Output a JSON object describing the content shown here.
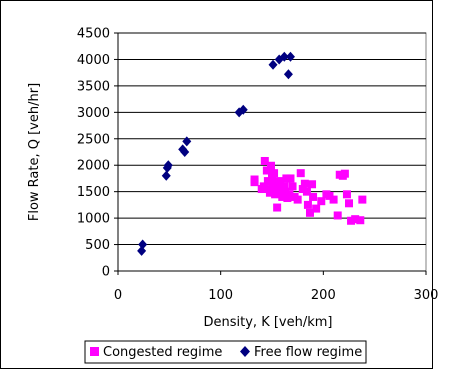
{
  "chart_data": {
    "type": "scatter",
    "title": "",
    "xlabel": "Density, K [veh/km]",
    "ylabel": "Flow Rate, Q [veh/hr]",
    "xlim": [
      0,
      300
    ],
    "ylim": [
      0,
      4500
    ],
    "x_ticks": [
      0,
      100,
      200,
      300
    ],
    "y_ticks": [
      0,
      500,
      1000,
      1500,
      2000,
      2500,
      3000,
      3500,
      4000,
      4500
    ],
    "x_tick_labels": [
      "0",
      "100",
      "200",
      "300"
    ],
    "y_tick_labels": [
      "0",
      "500",
      "1000",
      "1500",
      "2000",
      "2500",
      "3000",
      "3500",
      "4000",
      "4500"
    ],
    "grid": "horizontal",
    "legend_position": "bottom",
    "series": [
      {
        "name": "Congested regime",
        "marker": "square",
        "color": "#ff00ff",
        "points": [
          [
            133,
            1730
          ],
          [
            133,
            1680
          ],
          [
            140,
            1550
          ],
          [
            142,
            1600
          ],
          [
            143,
            2080
          ],
          [
            145,
            1900
          ],
          [
            146,
            1700
          ],
          [
            147,
            1550
          ],
          [
            148,
            1480
          ],
          [
            149,
            1990
          ],
          [
            150,
            1750
          ],
          [
            151,
            1620
          ],
          [
            152,
            1850
          ],
          [
            153,
            1450
          ],
          [
            154,
            1560
          ],
          [
            155,
            1200
          ],
          [
            156,
            1520
          ],
          [
            157,
            1700
          ],
          [
            158,
            1650
          ],
          [
            159,
            1500
          ],
          [
            160,
            1400
          ],
          [
            162,
            1600
          ],
          [
            163,
            1500
          ],
          [
            164,
            1750
          ],
          [
            165,
            1380
          ],
          [
            167,
            1450
          ],
          [
            168,
            1750
          ],
          [
            170,
            1600
          ],
          [
            172,
            1400
          ],
          [
            175,
            1350
          ],
          [
            178,
            1850
          ],
          [
            180,
            1550
          ],
          [
            182,
            1650
          ],
          [
            184,
            1500
          ],
          [
            185,
            1250
          ],
          [
            187,
            1100
          ],
          [
            189,
            1640
          ],
          [
            190,
            1400
          ],
          [
            193,
            1180
          ],
          [
            198,
            1320
          ],
          [
            203,
            1450
          ],
          [
            206,
            1420
          ],
          [
            210,
            1350
          ],
          [
            214,
            1050
          ],
          [
            216,
            1820
          ],
          [
            219,
            1800
          ],
          [
            221,
            1840
          ],
          [
            223,
            1450
          ],
          [
            225,
            1280
          ],
          [
            227,
            950
          ],
          [
            231,
            980
          ],
          [
            236,
            960
          ],
          [
            238,
            1350
          ]
        ]
      },
      {
        "name": "Free flow regime",
        "marker": "diamond",
        "color": "#000080",
        "points": [
          [
            23,
            380
          ],
          [
            24,
            500
          ],
          [
            47,
            1800
          ],
          [
            48,
            1950
          ],
          [
            49,
            2000
          ],
          [
            63,
            2300
          ],
          [
            65,
            2250
          ],
          [
            67,
            2450
          ],
          [
            118,
            3000
          ],
          [
            122,
            3050
          ],
          [
            151,
            3900
          ],
          [
            157,
            4000
          ],
          [
            162,
            4050
          ],
          [
            166,
            3720
          ],
          [
            168,
            4050
          ]
        ]
      }
    ]
  }
}
